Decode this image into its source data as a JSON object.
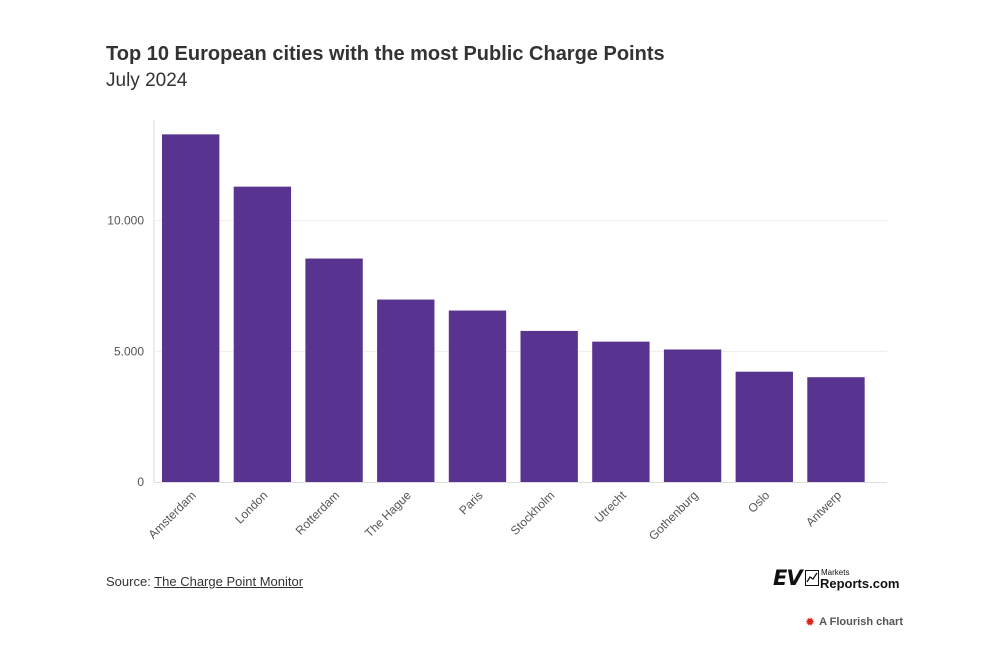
{
  "chart_data": {
    "type": "bar",
    "title": "Top 10 European cities with the most Public Charge Points",
    "subtitle": "July 2024",
    "categories": [
      "Amsterdam",
      "London",
      "Rotterdam",
      "The Hague",
      "Paris",
      "Stockholm",
      "Utrecht",
      "Gothenburg",
      "Oslo",
      "Antwerp"
    ],
    "values": [
      13300,
      11300,
      8550,
      6980,
      6560,
      5780,
      5370,
      5070,
      4220,
      4010
    ],
    "yticks": [
      0,
      5000,
      10000
    ],
    "ytick_labels": [
      "0",
      "5.000",
      "10.000"
    ],
    "ylim": [
      0,
      14000
    ],
    "xlabel": "",
    "ylabel": "",
    "grid": true,
    "bar_color": "#58338f"
  },
  "footer": {
    "source_prefix": "Source: ",
    "source_link": "The Charge Point Monitor",
    "logo_ev": "EV",
    "logo_markets": "Markets",
    "logo_reports": "Reports.com",
    "flourish_label": "A Flourish chart",
    "flourish_icon": "flourish-icon"
  },
  "colors": {
    "bar": "#58338f",
    "grid": "#eeeeee",
    "axis": "#cccccc",
    "text": "#333333"
  }
}
